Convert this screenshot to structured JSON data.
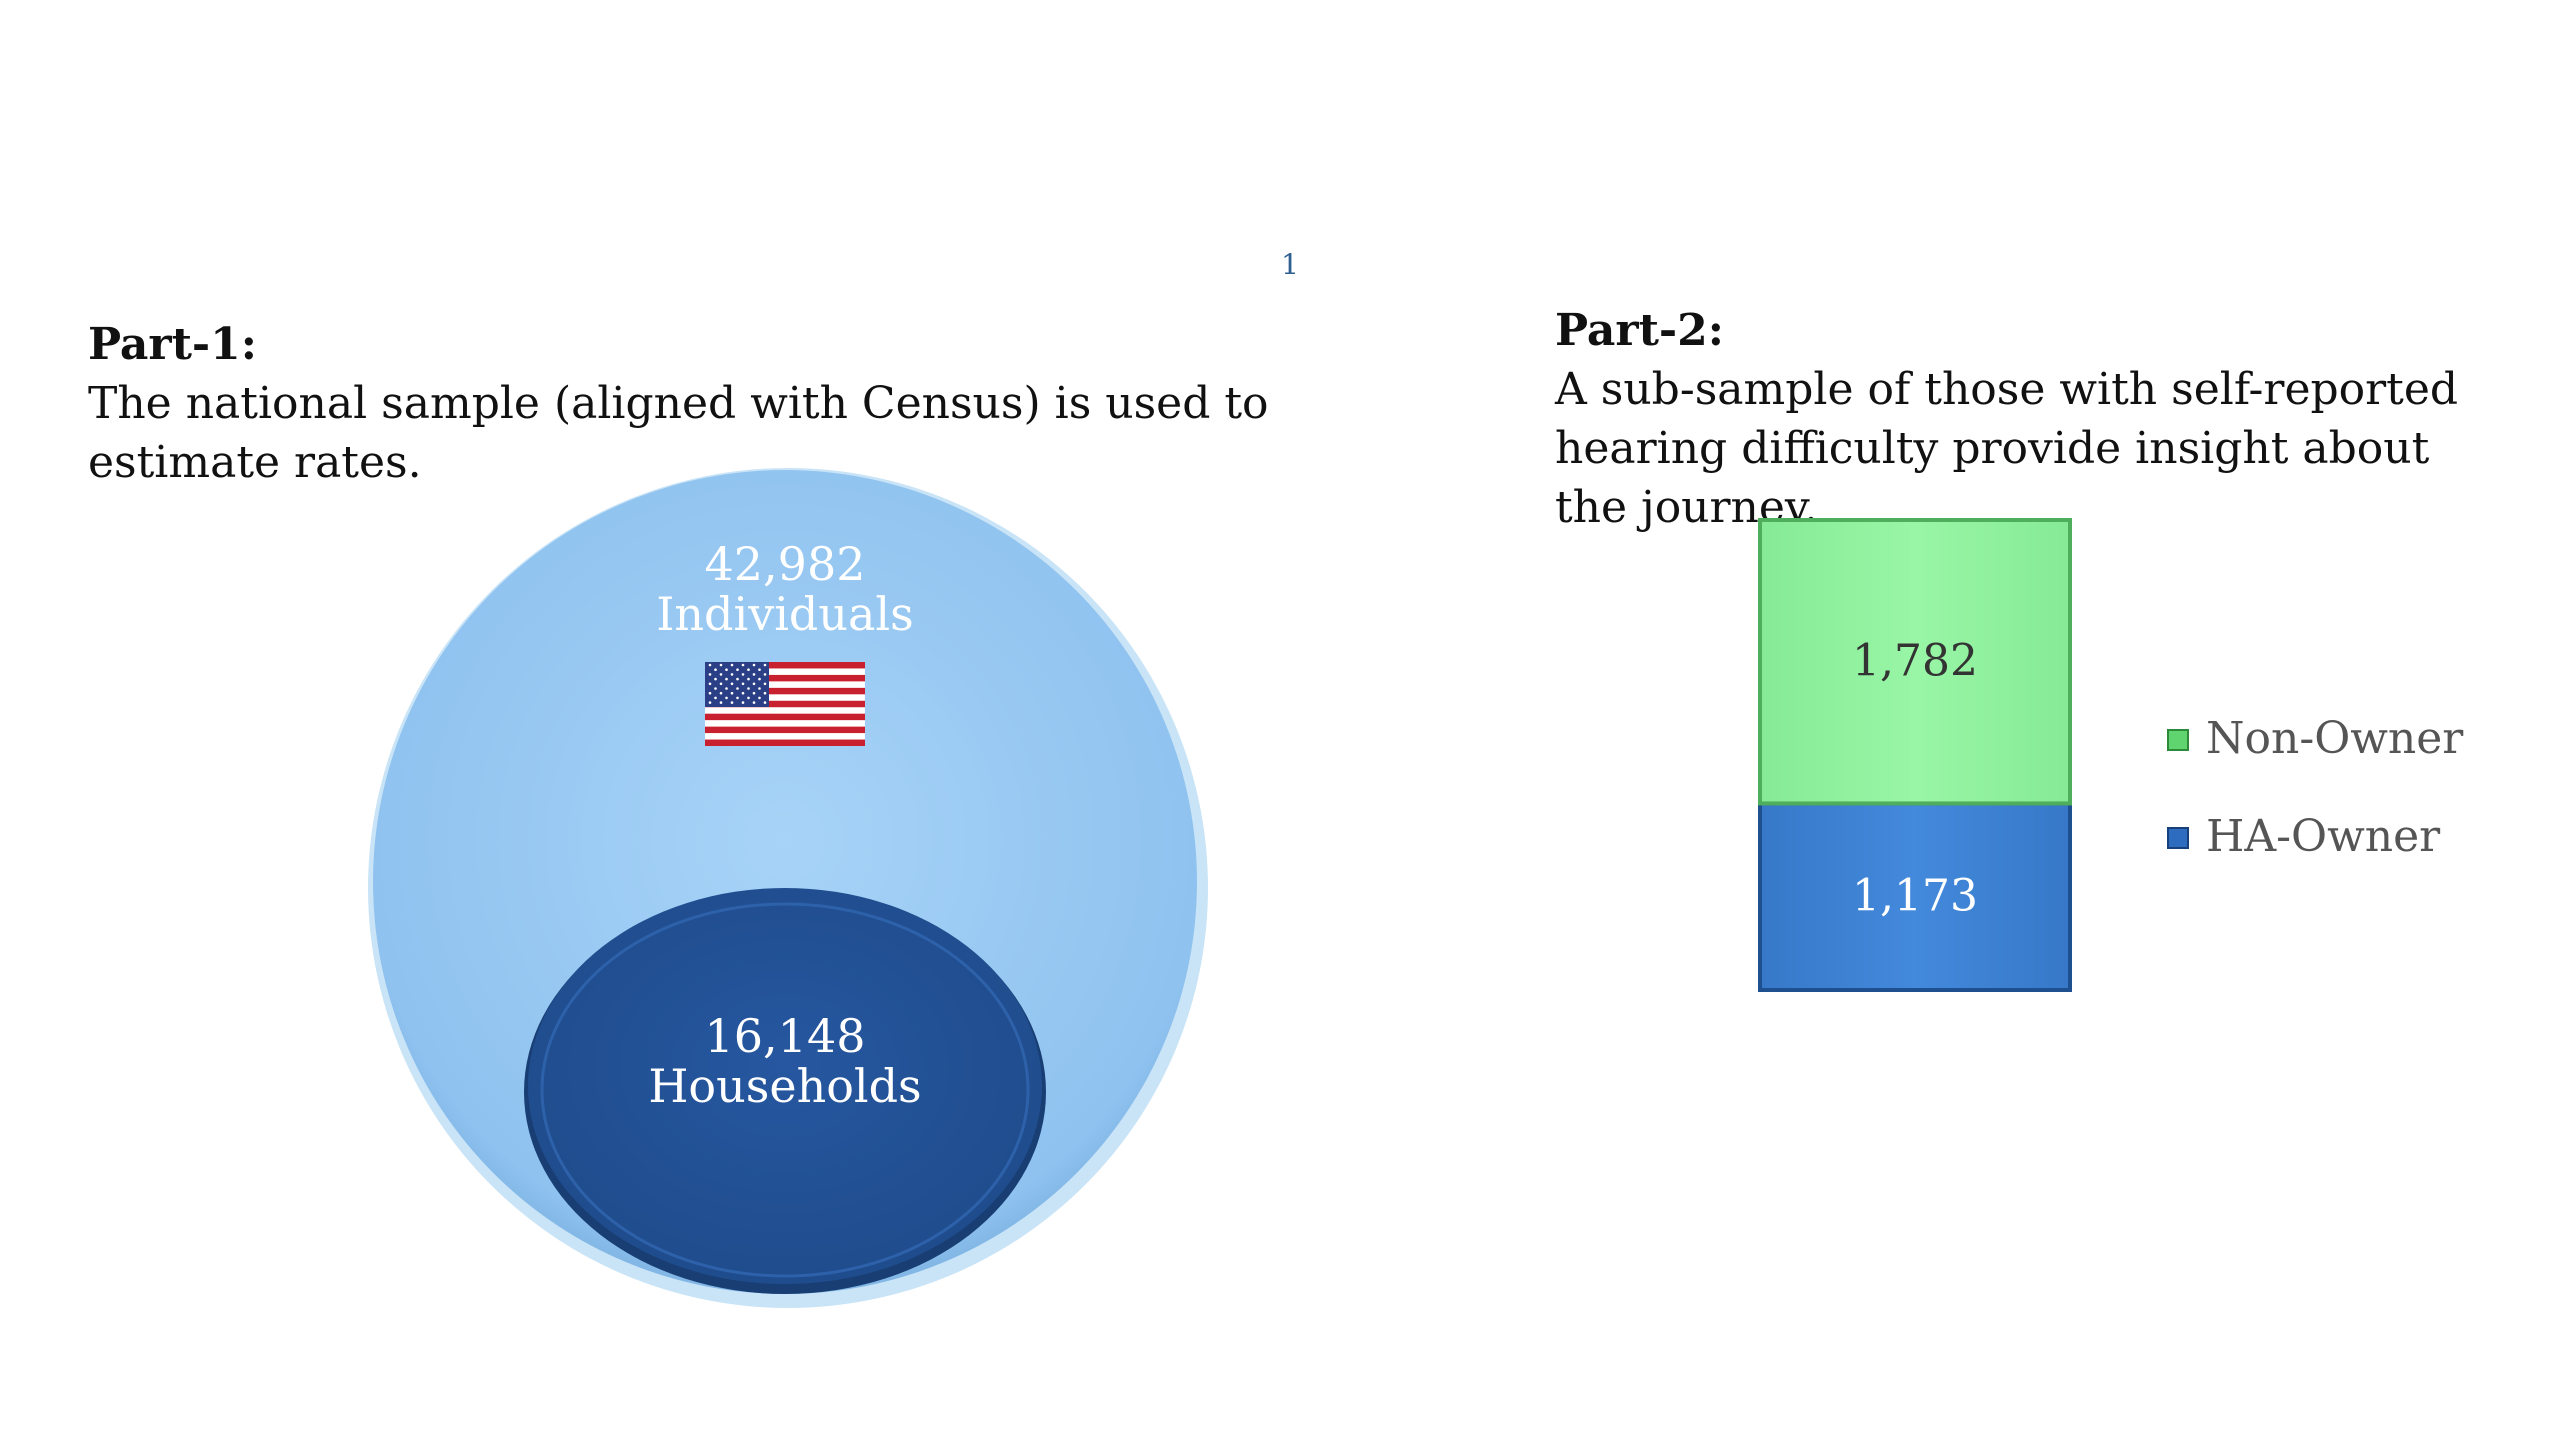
{
  "page": {
    "number": "1"
  },
  "part1": {
    "heading": "Part-1:",
    "text": "The national sample (aligned with Census) is used to estimate rates."
  },
  "part2": {
    "heading": "Part-2:",
    "text": "A sub-sample of those with self-reported hearing difficulty provide insight about the journey."
  },
  "flag_icon": "us-flag-icon",
  "colors": {
    "individuals": "#93c6f1",
    "households": "#214f92",
    "non_owner": "#92f5a0",
    "ha_owner": "#3f86d8"
  },
  "chart_data": [
    {
      "type": "venn",
      "sets": [
        {
          "value": 42982,
          "value_label": "42,982",
          "label": "Individuals"
        },
        {
          "value": 16148,
          "value_label": "16,148",
          "label": "Households"
        }
      ]
    },
    {
      "type": "bar",
      "stacked": true,
      "categories": [
        ""
      ],
      "series": [
        {
          "name": "HA-Owner",
          "values": [
            1173
          ],
          "value_label": "1,173"
        },
        {
          "name": "Non-Owner",
          "values": [
            1782
          ],
          "value_label": "1,782"
        }
      ],
      "legend": {
        "position": "right",
        "order": [
          "Non-Owner",
          "HA-Owner"
        ]
      }
    }
  ]
}
